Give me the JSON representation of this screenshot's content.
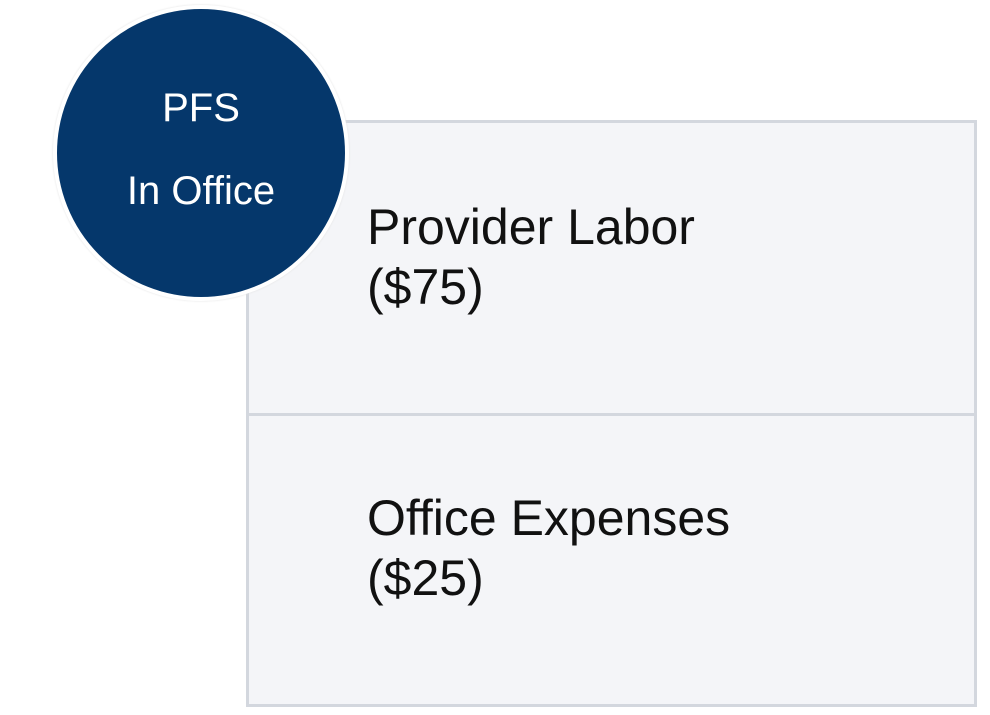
{
  "badge": {
    "line1": "PFS",
    "line2": "In Office",
    "color": "#05376b"
  },
  "rows": [
    {
      "label": "Provider Labor",
      "value": "($75)"
    },
    {
      "label": "Office Expenses",
      "value": "($25)"
    }
  ]
}
